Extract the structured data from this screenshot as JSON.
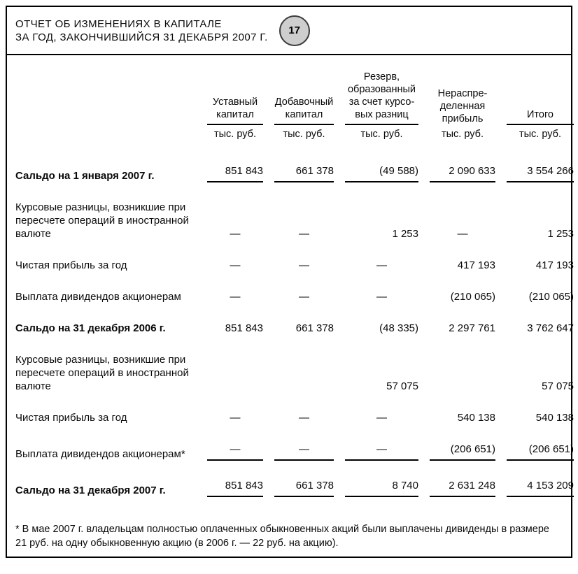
{
  "header": {
    "title_line1": "ОТЧЕТ ОБ ИЗМЕНЕНИЯХ В КАПИТАЛЕ",
    "title_line2": "ЗА ГОД, ЗАКОНЧИВШИЙСЯ 31 ДЕКАБРЯ 2007 Г.",
    "page_number": "17",
    "badge_color": "#cecece"
  },
  "table": {
    "columns": [
      {
        "title_lines": [
          "Уставный",
          "капитал"
        ],
        "unit": "тыс. руб.",
        "underlined": true
      },
      {
        "title_lines": [
          "Добавочный",
          "капитал"
        ],
        "unit": "тыс. руб.",
        "underlined": true
      },
      {
        "title_lines": [
          "Резерв,",
          "образованный",
          "за счет курсо-",
          "вых разниц"
        ],
        "unit": "тыс. руб.",
        "underlined": true
      },
      {
        "title_lines": [
          "Нераспре-",
          "деленная",
          "прибыль"
        ],
        "unit": "тыс. руб.",
        "underlined": false
      },
      {
        "title_lines": [
          "Итого"
        ],
        "unit": "тыс. руб.",
        "underlined": true
      }
    ],
    "rows": [
      {
        "label": "Сальдо на 1 января 2007 г.",
        "bold": true,
        "rule_below": true,
        "values": [
          "851 843",
          "661 378",
          "(49 588)",
          "2 090 633",
          "3 554 266"
        ]
      },
      {
        "label": "Курсовые разницы, возникшие при пересчете операций в иностранной валюте",
        "bold": false,
        "rule_below": false,
        "values": [
          "—",
          "—",
          "1 253",
          "—",
          "1 253"
        ]
      },
      {
        "label": "Чистая прибыль за год",
        "bold": false,
        "rule_below": false,
        "values": [
          "—",
          "—",
          "—",
          "417 193",
          "417 193"
        ]
      },
      {
        "label": "Выплата дивидендов акционерам",
        "bold": false,
        "rule_below": false,
        "values": [
          "—",
          "—",
          "—",
          "(210 065)",
          "(210 065)"
        ]
      },
      {
        "label": "Сальдо на 31 декабря 2006 г.",
        "bold": true,
        "rule_below": false,
        "values": [
          "851 843",
          "661 378",
          "(48 335)",
          "2 297 761",
          "3 762 647"
        ]
      },
      {
        "label": "Курсовые разницы, возникшие при пересчете операций в иностранной валюте",
        "bold": false,
        "rule_below": false,
        "values": [
          "",
          "",
          "57 075",
          "",
          "57 075"
        ]
      },
      {
        "label": "Чистая прибыль за год",
        "bold": false,
        "rule_below": false,
        "values": [
          "—",
          "—",
          "—",
          "540 138",
          "540 138"
        ]
      },
      {
        "label": "Выплата дивидендов акционерам*",
        "bold": false,
        "rule_below": true,
        "values": [
          "—",
          "—",
          "—",
          "(206 651)",
          "(206 651)"
        ]
      },
      {
        "label": "Сальдо на 31 декабря 2007 г.",
        "bold": true,
        "rule_below": true,
        "values": [
          "851 843",
          "661 378",
          "8 740",
          "2 631 248",
          "4 153 209"
        ]
      }
    ]
  },
  "footnote": {
    "text": "* В мае 2007 г. владельцам полностью оплаченных обыкновенных акций были выплачены дивиденды в размере 21 руб. на одну обыкновенную акцию (в 2006 г. — 22 руб. на акцию)."
  }
}
